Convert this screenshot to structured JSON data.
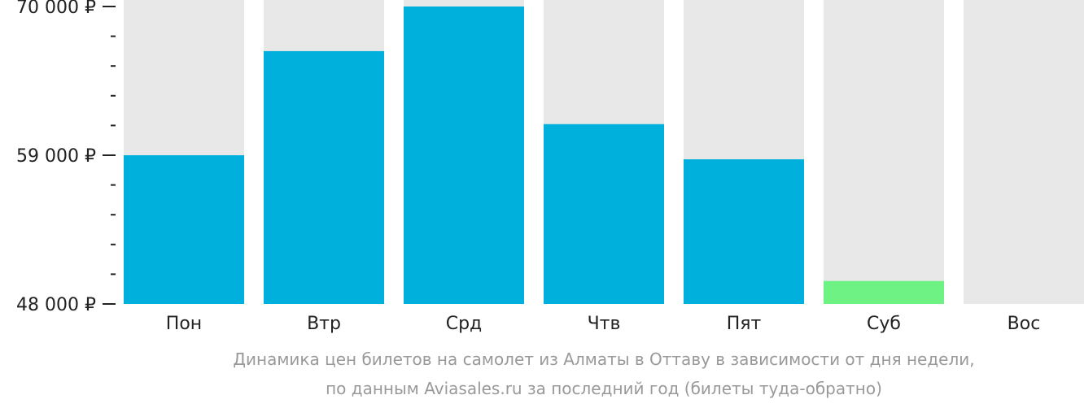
{
  "chart_data": {
    "type": "bar",
    "categories": [
      "Пон",
      "Втр",
      "Срд",
      "Чтв",
      "Пят",
      "Суб",
      "Вос"
    ],
    "values": [
      59000,
      66700,
      70000,
      61300,
      58700,
      49700,
      null
    ],
    "highlight": [
      false,
      false,
      false,
      false,
      false,
      true,
      false
    ],
    "ylim": [
      48000,
      70000
    ],
    "y_tick_labels": [
      "70 000 ₽",
      "59 000 ₽",
      "48 000 ₽"
    ],
    "y_tick_values": [
      70000,
      59000,
      48000
    ],
    "caption_line1": "Динамика цен билетов на самолет из Алматы в Оттаву в зависимости от дня недели,",
    "caption_line2": "по данным Aviasales.ru за последний год (билеты туда-обратно)",
    "colors": {
      "bar": "#00b0dc",
      "bar_highlight": "#6ef283",
      "track": "#e8e8e8",
      "axis": "#222222",
      "caption": "#999999"
    }
  }
}
